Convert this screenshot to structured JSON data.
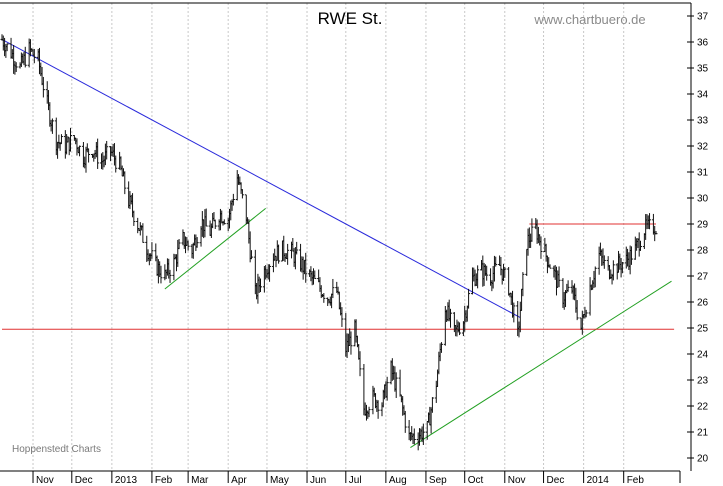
{
  "chart_data": {
    "type": "ohlc",
    "title": "RWE St.",
    "watermark": "www.chartbuero.de",
    "credit": "Hoppenstedt Charts",
    "y_axis": {
      "position": "right",
      "ylim": [
        19.5,
        37.5
      ],
      "ticks": [
        20,
        21,
        22,
        23,
        24,
        25,
        26,
        27,
        28,
        29,
        30,
        31,
        32,
        33,
        34,
        35,
        36,
        37
      ]
    },
    "x_axis": {
      "tick_labels": [
        "Nov",
        "Dec",
        "2013",
        "Feb",
        "Mar",
        "Apr",
        "May",
        "Jun",
        "Jul",
        "Aug",
        "Sep",
        "Oct",
        "Nov",
        "Dec",
        "2014",
        "Feb"
      ],
      "tick_dates": [
        "2012-11-01",
        "2012-12-01",
        "2013-01-01",
        "2013-02-01",
        "2013-03-01",
        "2013-04-01",
        "2013-05-01",
        "2013-06-01",
        "2013-07-01",
        "2013-08-01",
        "2013-09-01",
        "2013-10-01",
        "2013-11-01",
        "2013-12-01",
        "2014-01-01",
        "2014-02-01"
      ],
      "range": [
        "2012-10-08",
        "2014-02-26"
      ]
    },
    "grid": {
      "vertical": "dashed",
      "horizontal": false
    },
    "price_path": [
      [
        "2012-10-08",
        36.1
      ],
      [
        "2012-10-15",
        35.6
      ],
      [
        "2012-10-22",
        35.0
      ],
      [
        "2012-10-29",
        35.7
      ],
      [
        "2012-11-05",
        35.3
      ],
      [
        "2012-11-12",
        33.6
      ],
      [
        "2012-11-19",
        32.2
      ],
      [
        "2012-11-26",
        32.0
      ],
      [
        "2012-12-03",
        32.3
      ],
      [
        "2012-12-10",
        31.6
      ],
      [
        "2012-12-17",
        31.9
      ],
      [
        "2012-12-24",
        31.4
      ],
      [
        "2012-12-31",
        31.8
      ],
      [
        "2013-01-07",
        31.2
      ],
      [
        "2013-01-14",
        29.9
      ],
      [
        "2013-01-21",
        29.0
      ],
      [
        "2013-01-28",
        28.1
      ],
      [
        "2013-02-04",
        27.4
      ],
      [
        "2013-02-11",
        27.0
      ],
      [
        "2013-02-18",
        27.5
      ],
      [
        "2013-02-25",
        28.4
      ],
      [
        "2013-03-04",
        28.0
      ],
      [
        "2013-03-11",
        29.1
      ],
      [
        "2013-03-18",
        28.7
      ],
      [
        "2013-03-25",
        29.4
      ],
      [
        "2013-04-01",
        29.2
      ],
      [
        "2013-04-08",
        30.8
      ],
      [
        "2013-04-15",
        29.3
      ],
      [
        "2013-04-22",
        26.3
      ],
      [
        "2013-04-29",
        27.2
      ],
      [
        "2013-05-06",
        27.8
      ],
      [
        "2013-05-13",
        28.0
      ],
      [
        "2013-05-20",
        27.9
      ],
      [
        "2013-05-27",
        27.5
      ],
      [
        "2013-06-03",
        27.0
      ],
      [
        "2013-06-10",
        26.6
      ],
      [
        "2013-06-17",
        26.2
      ],
      [
        "2013-06-24",
        26.4
      ],
      [
        "2013-07-01",
        24.2
      ],
      [
        "2013-07-08",
        24.9
      ],
      [
        "2013-07-15",
        21.9
      ],
      [
        "2013-07-22",
        22.3
      ],
      [
        "2013-07-29",
        22.1
      ],
      [
        "2013-08-05",
        23.4
      ],
      [
        "2013-08-12",
        22.3
      ],
      [
        "2013-08-19",
        20.8
      ],
      [
        "2013-08-26",
        20.9
      ],
      [
        "2013-09-02",
        21.1
      ],
      [
        "2013-09-09",
        22.9
      ],
      [
        "2013-09-16",
        25.8
      ],
      [
        "2013-09-23",
        24.8
      ],
      [
        "2013-09-30",
        25.3
      ],
      [
        "2013-10-07",
        26.9
      ],
      [
        "2013-10-14",
        27.2
      ],
      [
        "2013-10-21",
        27.0
      ],
      [
        "2013-10-28",
        27.4
      ],
      [
        "2013-11-04",
        26.6
      ],
      [
        "2013-11-11",
        24.7
      ],
      [
        "2013-11-18",
        28.3
      ],
      [
        "2013-11-25",
        28.8
      ],
      [
        "2013-12-02",
        27.9
      ],
      [
        "2013-12-09",
        27.1
      ],
      [
        "2013-12-16",
        26.2
      ],
      [
        "2013-12-23",
        26.5
      ],
      [
        "2013-12-30",
        25.0
      ],
      [
        "2014-01-06",
        26.6
      ],
      [
        "2014-01-13",
        27.8
      ],
      [
        "2014-01-20",
        27.2
      ],
      [
        "2014-01-27",
        27.4
      ],
      [
        "2014-02-03",
        27.6
      ],
      [
        "2014-02-10",
        28.0
      ],
      [
        "2014-02-17",
        28.8
      ],
      [
        "2014-02-24",
        28.9
      ]
    ],
    "trendlines": [
      {
        "color": "#2a2adb",
        "from": [
          "2012-10-08",
          36.1
        ],
        "to": [
          "2013-11-13",
          25.4
        ]
      },
      {
        "color": "#22a022",
        "from": [
          "2013-02-11",
          26.5
        ],
        "to": [
          "2013-04-30",
          29.6
        ]
      },
      {
        "color": "#22a022",
        "from": [
          "2013-08-20",
          20.4
        ],
        "to": [
          "2014-03-10",
          26.8
        ]
      },
      {
        "color": "#e03030",
        "from": [
          "2012-10-08",
          24.95
        ],
        "to": [
          "2014-03-12",
          24.95
        ]
      },
      {
        "color": "#e03030",
        "from": [
          "2013-11-20",
          29.0
        ],
        "to": [
          "2014-02-26",
          29.0
        ]
      }
    ]
  }
}
